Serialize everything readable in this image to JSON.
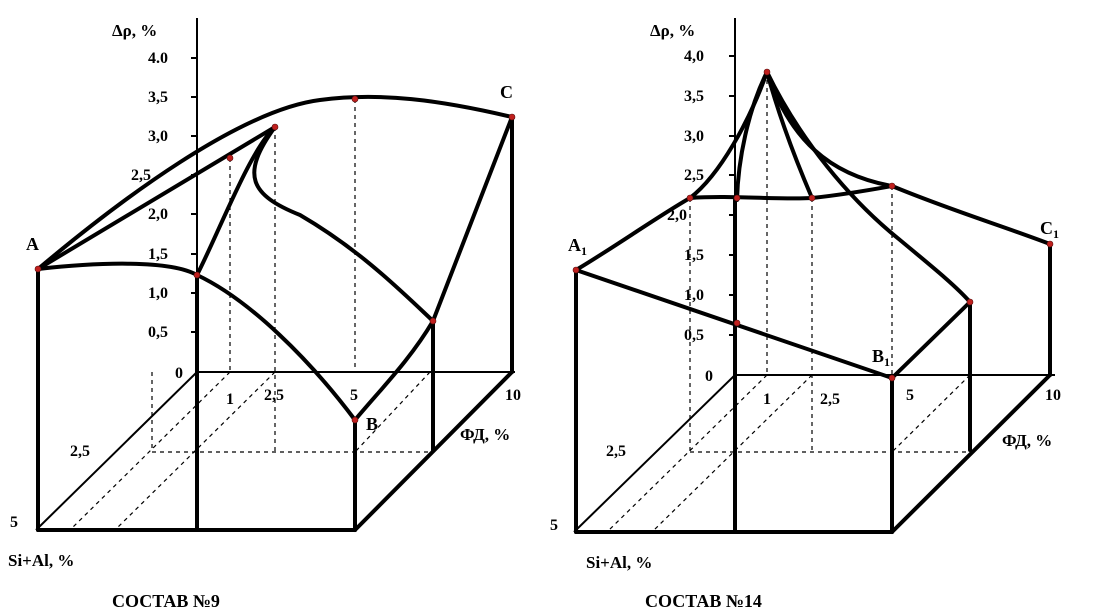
{
  "axes": {
    "y_title": "Δρ, %",
    "x_title": "ФД, %",
    "z_title": "Si+Al, %"
  },
  "left": {
    "caption": "СОСТАВ №9",
    "y_ticks": [
      "4.0",
      "3,5",
      "3,0",
      "2,5",
      "2,0",
      "1,5",
      "1,0",
      "0,5",
      "0"
    ],
    "x_ticks": [
      "1",
      "2,5",
      "5",
      "10"
    ],
    "z_ticks": [
      "2,5",
      "5"
    ],
    "corners": {
      "a": "A",
      "b": "B",
      "c": "C"
    }
  },
  "right": {
    "caption": "СОСТАВ №14",
    "y_ticks": [
      "4,0",
      "3,5",
      "3,0",
      "2,5",
      "2,0",
      "1,5",
      "1,0",
      "0,5",
      "0"
    ],
    "x_ticks": [
      "1",
      "2,5",
      "5",
      "10"
    ],
    "z_ticks": [
      "2,5",
      "5"
    ],
    "corners": {
      "a": "A",
      "a_sub": "1",
      "b": "B",
      "b_sub": "1",
      "c": "C",
      "c_sub": "1"
    }
  }
}
